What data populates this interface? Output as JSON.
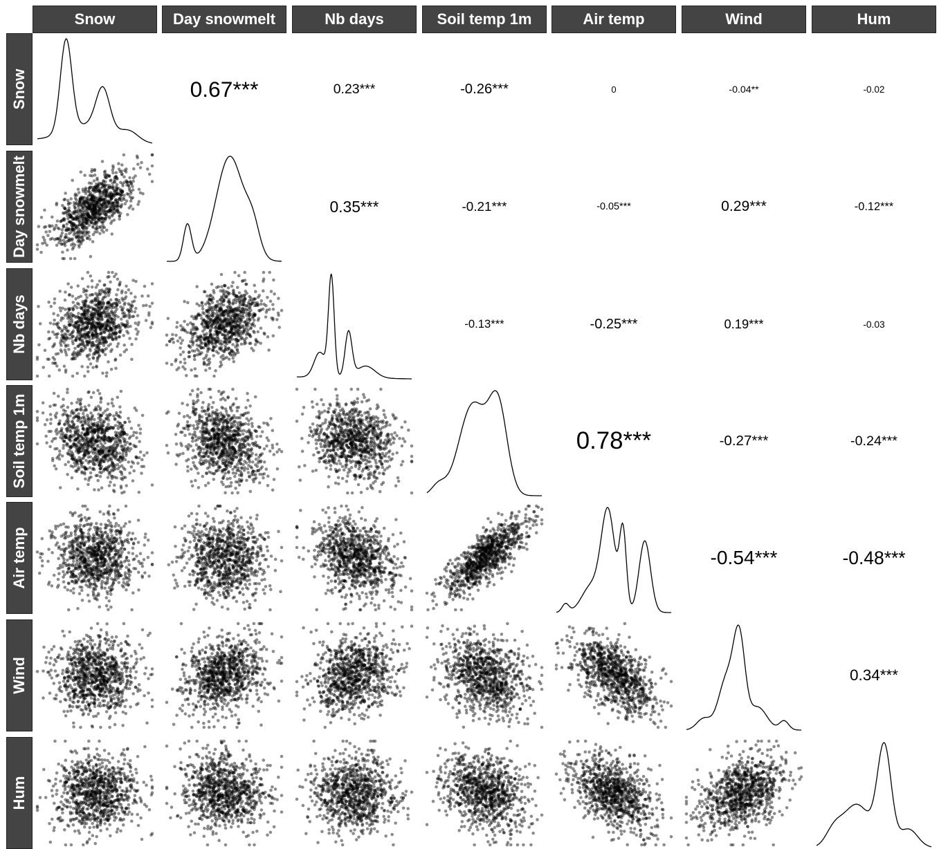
{
  "chart_data": {
    "type": "scatter-matrix",
    "variables": [
      "Snow",
      "Day snowmelt",
      "Nb days",
      "Soil temp 1m",
      "Air temp",
      "Wind",
      "Hum"
    ],
    "diagonal": "density",
    "lower": "scatter",
    "upper": "correlation",
    "correlations": [
      {
        "row": 0,
        "col": 1,
        "label": "0.67***",
        "value": 0.67
      },
      {
        "row": 0,
        "col": 2,
        "label": "0.23***",
        "value": 0.23
      },
      {
        "row": 0,
        "col": 3,
        "label": "-0.26***",
        "value": -0.26
      },
      {
        "row": 0,
        "col": 4,
        "label": "0",
        "value": 0
      },
      {
        "row": 0,
        "col": 5,
        "label": "-0.04**",
        "value": -0.04
      },
      {
        "row": 0,
        "col": 6,
        "label": "-0.02",
        "value": -0.02
      },
      {
        "row": 1,
        "col": 2,
        "label": "0.35***",
        "value": 0.35
      },
      {
        "row": 1,
        "col": 3,
        "label": "-0.21***",
        "value": -0.21
      },
      {
        "row": 1,
        "col": 4,
        "label": "-0.05***",
        "value": -0.05
      },
      {
        "row": 1,
        "col": 5,
        "label": "0.29***",
        "value": 0.29
      },
      {
        "row": 1,
        "col": 6,
        "label": "-0.12***",
        "value": -0.12
      },
      {
        "row": 2,
        "col": 3,
        "label": "-0.13***",
        "value": -0.13
      },
      {
        "row": 2,
        "col": 4,
        "label": "-0.25***",
        "value": -0.25
      },
      {
        "row": 2,
        "col": 5,
        "label": "0.19***",
        "value": 0.19
      },
      {
        "row": 2,
        "col": 6,
        "label": "-0.03",
        "value": -0.03
      },
      {
        "row": 3,
        "col": 4,
        "label": "0.78***",
        "value": 0.78
      },
      {
        "row": 3,
        "col": 5,
        "label": "-0.27***",
        "value": -0.27
      },
      {
        "row": 3,
        "col": 6,
        "label": "-0.24***",
        "value": -0.24
      },
      {
        "row": 4,
        "col": 5,
        "label": "-0.54***",
        "value": -0.54
      },
      {
        "row": 4,
        "col": 6,
        "label": "-0.48***",
        "value": -0.48
      },
      {
        "row": 5,
        "col": 6,
        "label": "0.34***",
        "value": 0.34
      }
    ],
    "point_color": "#000000",
    "line_color": "#000000",
    "strip_color": "#444444"
  }
}
